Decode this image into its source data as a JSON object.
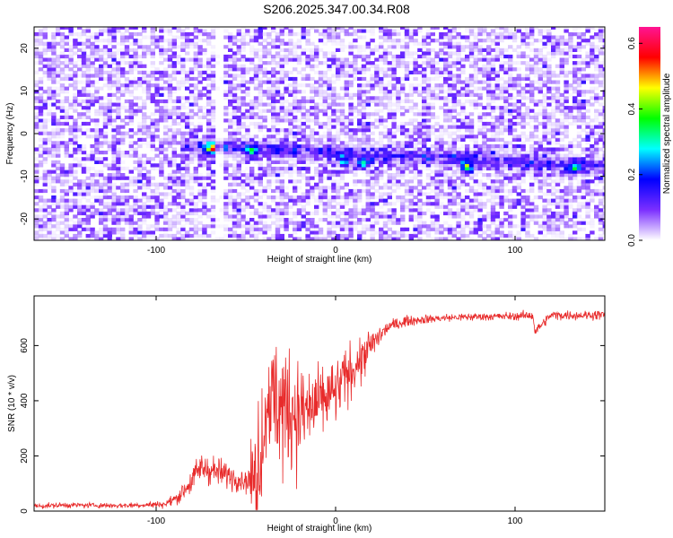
{
  "title": "S206.2025.347.00.34.R08",
  "colors": {
    "signal": "#e82b2b",
    "frame": "#000000",
    "background": "#ffffff"
  },
  "chart_data": [
    {
      "type": "heatmap",
      "name": "spectrogram",
      "xlabel": "Height of straight line (km)",
      "ylabel": "Frequency (Hz)",
      "xlim": [
        -168,
        150
      ],
      "ylim": [
        -25,
        25
      ],
      "x_ticks": [
        -100,
        0,
        100
      ],
      "x_tick_labels": [
        "-100",
        "0",
        "100"
      ],
      "y_ticks": [
        -20,
        -10,
        0,
        10,
        20
      ],
      "y_tick_labels": [
        "-20",
        "-10",
        "0",
        "10",
        "20"
      ],
      "colorbar": {
        "label": "Normalized spectral amplitude",
        "range": [
          0.0,
          0.65
        ],
        "ticks": [
          0.0,
          0.2,
          0.4,
          0.6
        ],
        "tick_labels": [
          "0.0",
          "0.2",
          "0.4",
          "0.6"
        ],
        "colors": [
          "#ffffff",
          "#7b2fff",
          "#0000ff",
          "#00ffff",
          "#00ff00",
          "#ffff00",
          "#ff0000",
          "#ff1493"
        ]
      },
      "signal_band": {
        "frequency_hz": [
          -3,
          -8
        ],
        "x_start_km": -88,
        "x_end_km": 150
      },
      "peaks": [
        {
          "x": -66,
          "y": -3.2,
          "amp": 0.5
        },
        {
          "x": -70,
          "y": -3.8,
          "amp": 0.35
        },
        {
          "x": -48,
          "y": -4.5,
          "amp": 0.2
        },
        {
          "x": 4,
          "y": -7.0,
          "amp": 0.22
        },
        {
          "x": 14,
          "y": -7.2,
          "amp": 0.3
        },
        {
          "x": 72,
          "y": -8.2,
          "amp": 0.35
        },
        {
          "x": 132,
          "y": -8.2,
          "amp": 0.25
        }
      ],
      "gap_x_km": -67
    },
    {
      "type": "line",
      "name": "snr",
      "xlabel": "Height of straight line (km)",
      "ylabel": "SNR (10 * v/v)",
      "xlim": [
        -168,
        150
      ],
      "ylim": [
        0,
        780
      ],
      "x_ticks": [
        -100,
        0,
        100
      ],
      "x_tick_labels": [
        "-100",
        "0",
        "100"
      ],
      "y_ticks": [
        0,
        200,
        400,
        600
      ],
      "y_tick_labels": [
        "0",
        "200",
        "400",
        "600"
      ],
      "series": [
        {
          "name": "SNR",
          "x": [
            -168,
            -150,
            -120,
            -95,
            -88,
            -80,
            -75,
            -70,
            -60,
            -50,
            -45,
            -40,
            -38,
            -30,
            -20,
            -10,
            0,
            10,
            20,
            25,
            30,
            40,
            60,
            80,
            100,
            110,
            111,
            120,
            140,
            150
          ],
          "y": [
            18,
            22,
            20,
            25,
            50,
            110,
            160,
            150,
            130,
            110,
            120,
            280,
            420,
            380,
            350,
            380,
            430,
            520,
            600,
            640,
            670,
            690,
            700,
            705,
            706,
            710,
            650,
            710,
            710,
            712
          ],
          "noise": [
            8,
            8,
            8,
            10,
            20,
            40,
            50,
            45,
            40,
            35,
            120,
            200,
            150,
            160,
            160,
            110,
            90,
            70,
            50,
            30,
            20,
            15,
            12,
            12,
            12,
            14,
            14,
            14,
            14,
            14
          ]
        }
      ]
    }
  ]
}
